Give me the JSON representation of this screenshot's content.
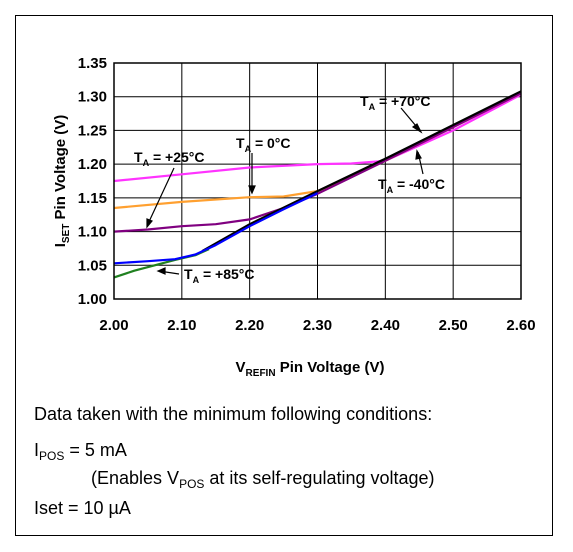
{
  "chart_data": {
    "type": "line",
    "xlabel": {
      "main": "V",
      "sub": "REFIN",
      "rest": " Pin Voltage (V)"
    },
    "ylabel": {
      "main": "I",
      "sub": "SET",
      "rest": " Pin Voltage (V)"
    },
    "xlim": [
      2.0,
      2.6
    ],
    "ylim": [
      1.0,
      1.35
    ],
    "xticks": [
      2.0,
      2.1,
      2.2,
      2.3,
      2.4,
      2.5,
      2.6
    ],
    "xtick_labels": [
      "2.00",
      "2.10",
      "2.20",
      "2.30",
      "2.40",
      "2.50",
      "2.60"
    ],
    "yticks": [
      1.0,
      1.05,
      1.1,
      1.15,
      1.2,
      1.25,
      1.3,
      1.35
    ],
    "ytick_labels": [
      "1.00",
      "1.05",
      "1.10",
      "1.15",
      "1.20",
      "1.25",
      "1.30",
      "1.35"
    ],
    "grid": true,
    "series": [
      {
        "name": "TA = -40°C",
        "color": "#ff33ff",
        "x": [
          2.0,
          2.1,
          2.2,
          2.3,
          2.35,
          2.4,
          2.5,
          2.6
        ],
        "y": [
          1.175,
          1.185,
          1.195,
          1.2,
          1.201,
          1.205,
          1.25,
          1.303
        ]
      },
      {
        "name": "TA = 0°C",
        "color": "#ffa030",
        "x": [
          2.0,
          2.1,
          2.2,
          2.25,
          2.3,
          2.35,
          2.4,
          2.5,
          2.6
        ],
        "y": [
          1.135,
          1.144,
          1.151,
          1.152,
          1.16,
          1.182,
          1.205,
          1.255,
          1.305
        ]
      },
      {
        "name": "TA = +25°C",
        "color": "#800080",
        "x": [
          2.0,
          2.05,
          2.1,
          2.15,
          2.2,
          2.25,
          2.3,
          2.4,
          2.5,
          2.6
        ],
        "y": [
          1.1,
          1.103,
          1.108,
          1.111,
          1.118,
          1.135,
          1.156,
          1.205,
          1.255,
          1.305
        ]
      },
      {
        "name": "TA = +70°C",
        "color": "#000000",
        "x": [
          2.13,
          2.2,
          2.3,
          2.4,
          2.5,
          2.6
        ],
        "y": [
          1.071,
          1.111,
          1.16,
          1.208,
          1.258,
          1.308
        ]
      },
      {
        "name": "TA = +85°C",
        "color": "#208020",
        "x": [
          2.0,
          2.03,
          2.06,
          2.09,
          2.12,
          2.14
        ],
        "y": [
          1.032,
          1.042,
          1.05,
          1.058,
          1.065,
          1.074
        ]
      },
      {
        "name": "blue",
        "color": "#0000ff",
        "x": [
          2.0,
          2.05,
          2.09,
          2.12,
          2.15,
          2.2,
          2.25,
          2.3
        ],
        "y": [
          1.053,
          1.056,
          1.059,
          1.066,
          1.08,
          1.108,
          1.133,
          1.157
        ]
      }
    ],
    "annotations": [
      {
        "id": "t70",
        "main": "T",
        "sub": "A",
        "rest": " = +70°C"
      },
      {
        "id": "t0",
        "main": "T",
        "sub": "A",
        "rest": " = 0°C"
      },
      {
        "id": "t25",
        "main": "T",
        "sub": "A",
        "rest": " = +25°C"
      },
      {
        "id": "tm40",
        "main": "T",
        "sub": "A",
        "rest": " = -40°C"
      },
      {
        "id": "t85",
        "main": "T",
        "sub": "A",
        "rest": " = +85°C"
      }
    ]
  },
  "notes": {
    "line1": "Data taken with the minimum following conditions:",
    "line2": {
      "main": "I",
      "sub": "POS",
      "rest": " = 5 mA"
    },
    "line3": {
      "pre": "(Enables V",
      "sub": "POS",
      "post": " at its self-regulating voltage)"
    },
    "line4": "Iset = 10 µA"
  }
}
